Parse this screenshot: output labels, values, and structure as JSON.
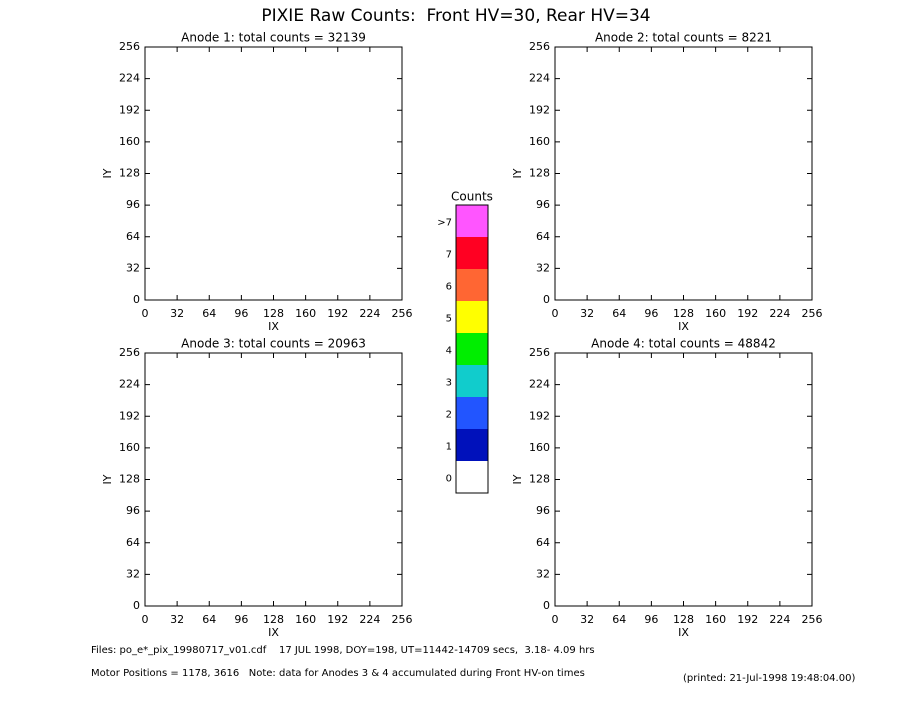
{
  "title": "PIXIE Raw Counts:  Front HV=30, Rear HV=34",
  "chart_data": [
    {
      "type": "heatmap",
      "title": "Anode 1: total counts = 32139",
      "x_label": "IX",
      "y_label": "IY",
      "xlim": [
        0,
        256
      ],
      "ylim": [
        0,
        256
      ],
      "xticks": [
        0,
        32,
        64,
        96,
        128,
        160,
        192,
        224,
        256
      ],
      "yticks": [
        0,
        32,
        64,
        96,
        128,
        160,
        192,
        224,
        256
      ]
    },
    {
      "type": "heatmap",
      "title": "Anode 2: total counts = 8221",
      "x_label": "IX",
      "y_label": "IY",
      "xlim": [
        0,
        256
      ],
      "ylim": [
        0,
        256
      ],
      "xticks": [
        0,
        32,
        64,
        96,
        128,
        160,
        192,
        224,
        256
      ],
      "yticks": [
        0,
        32,
        64,
        96,
        128,
        160,
        192,
        224,
        256
      ]
    },
    {
      "type": "heatmap",
      "title": "Anode 3: total counts = 20963",
      "x_label": "IX",
      "y_label": "IY",
      "xlim": [
        0,
        256
      ],
      "ylim": [
        0,
        256
      ],
      "xticks": [
        0,
        32,
        64,
        96,
        128,
        160,
        192,
        224,
        256
      ],
      "yticks": [
        0,
        32,
        64,
        96,
        128,
        160,
        192,
        224,
        256
      ]
    },
    {
      "type": "heatmap",
      "title": "Anode 4: total counts = 48842",
      "x_label": "IX",
      "y_label": "IY",
      "xlim": [
        0,
        256
      ],
      "ylim": [
        0,
        256
      ],
      "xticks": [
        0,
        32,
        64,
        96,
        128,
        160,
        192,
        224,
        256
      ],
      "yticks": [
        0,
        32,
        64,
        96,
        128,
        160,
        192,
        224,
        256
      ]
    }
  ],
  "colorbar": {
    "title": "Counts",
    "categories": [
      ">7",
      "7",
      "6",
      "5",
      "4",
      "3",
      "2",
      "1",
      "0"
    ],
    "colors": [
      "#ff55ff",
      "#ff0022",
      "#ff6633",
      "#ffff00",
      "#00ee00",
      "#11cccc",
      "#2255ff",
      "#0011bb",
      "#ffffff"
    ]
  },
  "footer": {
    "files": "Files: po_e*_pix_19980717_v01.cdf    17 JUL 1998, DOY=198, UT=11442-14709 secs,  3.18- 4.09 hrs",
    "motor": "Motor Positions = 1178, 3616   Note: data for Anodes 3 & 4 accumulated during Front HV-on times",
    "printed": "(printed: 21-Jul-1998 19:48:04.00)"
  }
}
